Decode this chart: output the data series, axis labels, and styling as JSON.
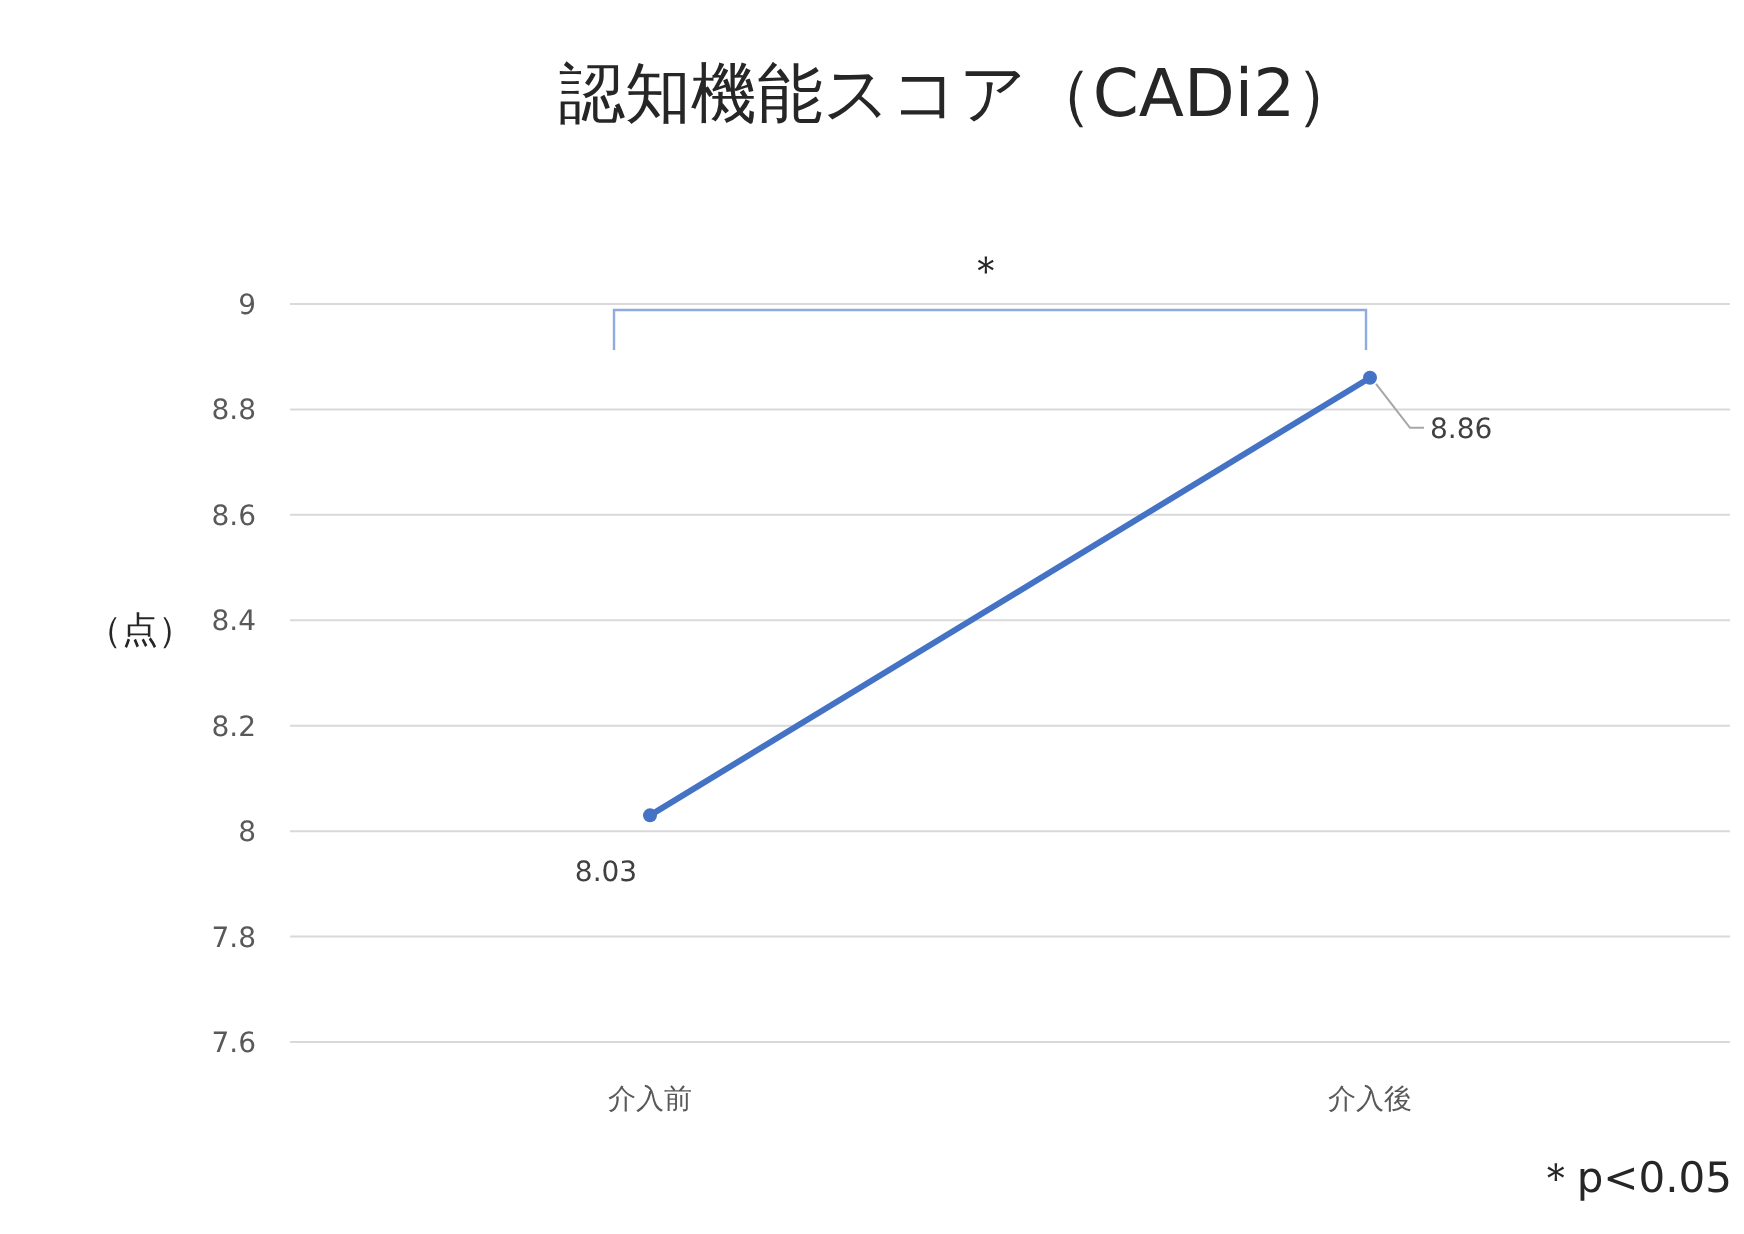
{
  "chart_data": {
    "type": "line",
    "title": "認知機能スコア（CADi2）",
    "ylabel": "（点）",
    "categories": [
      "介入前",
      "介入後"
    ],
    "series": [
      {
        "color": "#4472c4",
        "values": [
          8.03,
          8.86
        ]
      }
    ],
    "ylim": [
      7.6,
      9
    ],
    "yticks": [
      7.6,
      7.8,
      8,
      8.2,
      8.4,
      8.6,
      8.8,
      9
    ],
    "grid": "y",
    "marker": "circle",
    "line_style": "solid",
    "data_labels": true,
    "annotations": [
      "＊",
      "＊p<0.05"
    ]
  }
}
